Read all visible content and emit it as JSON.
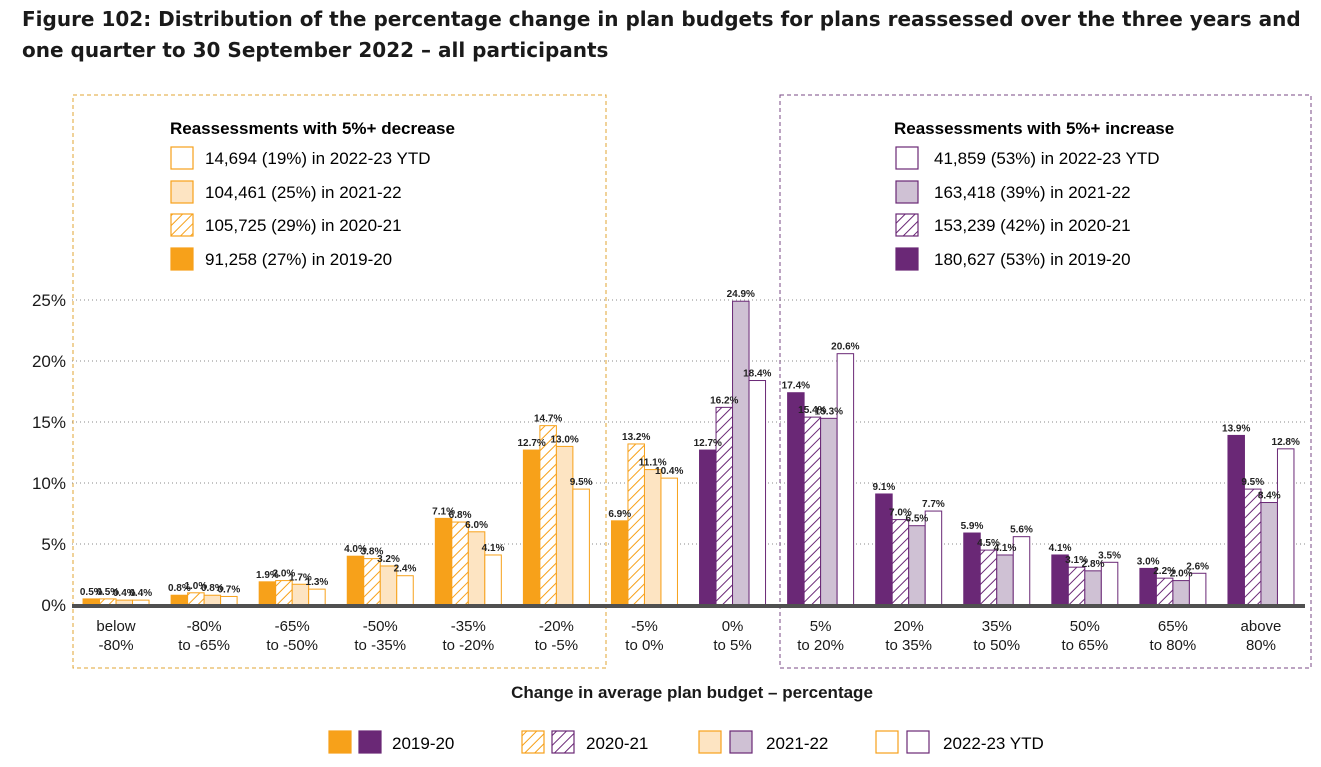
{
  "title": "Figure 102: Distribution of the percentage change in plan budgets for plans reassessed over the three years and one quarter to 30 September 2022 – all participants",
  "colors": {
    "orange": "#f7a11a",
    "purple": "#6a2876",
    "orange_light": "#fde4c2",
    "purple_light": "#cfc1d4",
    "axis": "#505050",
    "grid": "#8a8a8a",
    "decrease_box": "#e0a433",
    "increase_box": "#7a4a86"
  },
  "decrease_box": {
    "heading": "Reassessments with 5%+ decrease",
    "items": [
      "14,694 (19%) in 2022-23 YTD",
      "104,461 (25%) in 2021-22",
      "105,725 (29%) in 2020-21",
      "91,258 (27%) in 2019-20"
    ]
  },
  "increase_box": {
    "heading": "Reassessments with 5%+ increase",
    "items": [
      "41,859 (53%) in 2022-23 YTD",
      "163,418 (39%) in 2021-22",
      "153,239 (42%) in 2020-21",
      "180,627 (53%) in 2019-20"
    ]
  },
  "legend": [
    "2019-20",
    "2020-21",
    "2021-22",
    "2022-23 YTD"
  ],
  "chart_data": {
    "type": "bar",
    "xlabel": "Change in average plan budget – percentage",
    "ylabel": "",
    "ylim": [
      0,
      25
    ],
    "yticks": [
      "0%",
      "5%",
      "10%",
      "15%",
      "20%",
      "25%"
    ],
    "grid": true,
    "categories": [
      [
        "below",
        "-80%"
      ],
      [
        "-80%",
        "to -65%"
      ],
      [
        "-65%",
        "to -50%"
      ],
      [
        "-50%",
        "to -35%"
      ],
      [
        "-35%",
        "to -20%"
      ],
      [
        "-20%",
        "to -5%"
      ],
      [
        "-5%",
        "to 0%"
      ],
      [
        "0%",
        "to 5%"
      ],
      [
        "5%",
        "to 20%"
      ],
      [
        "20%",
        "to 35%"
      ],
      [
        "35%",
        "to 50%"
      ],
      [
        "50%",
        "to 65%"
      ],
      [
        "65%",
        "to 80%"
      ],
      [
        "above",
        "80%"
      ]
    ],
    "series": [
      {
        "name": "2019-20",
        "values": [
          0.5,
          0.8,
          1.9,
          4.0,
          7.1,
          12.7,
          6.9,
          12.7,
          17.4,
          9.1,
          5.9,
          4.1,
          3.0,
          13.9
        ]
      },
      {
        "name": "2020-21",
        "values": [
          0.5,
          1.0,
          2.0,
          3.8,
          6.8,
          14.7,
          13.2,
          16.2,
          15.4,
          7.0,
          4.5,
          3.1,
          2.2,
          9.5
        ]
      },
      {
        "name": "2021-22",
        "values": [
          0.4,
          0.8,
          1.7,
          3.2,
          6.0,
          13.0,
          11.1,
          24.9,
          15.3,
          6.5,
          4.1,
          2.8,
          2.0,
          8.4
        ]
      },
      {
        "name": "2022-23 YTD",
        "values": [
          0.4,
          0.7,
          1.3,
          2.4,
          4.1,
          9.5,
          10.4,
          18.4,
          20.6,
          7.7,
          5.6,
          3.5,
          2.6,
          12.8
        ]
      }
    ],
    "data_labels": [
      [
        "0.5%",
        "0.5%",
        "0.4%",
        "0.4%"
      ],
      [
        "0.8%",
        "1.0%",
        "0.8%",
        "0.7%"
      ],
      [
        "1.9%",
        "2.0%",
        "1.7%",
        "1.3%"
      ],
      [
        "4.0%",
        "3.8%",
        "3.2%",
        "2.4%"
      ],
      [
        "7.1%",
        "6.8%",
        "6.0%",
        "4.1%"
      ],
      [
        "12.7%",
        "14.7%",
        "13.0%",
        "9.5%"
      ],
      [
        "6.9%",
        "13.2%",
        "11.1%",
        "10.4%"
      ],
      [
        "12.7%",
        "16.2%",
        "24.9%",
        "18.4%"
      ],
      [
        "17.4%",
        "15.4%",
        "15.3%",
        "20.6%"
      ],
      [
        "9.1%",
        "7.0%",
        "6.5%",
        "7.7%"
      ],
      [
        "5.9%",
        "4.5%",
        "4.1%",
        "5.6%"
      ],
      [
        "4.1%",
        "3.1%",
        "2.8%",
        "3.5%"
      ],
      [
        "3.0%",
        "2.2%",
        "2.0%",
        "2.6%"
      ],
      [
        "13.9%",
        "9.5%",
        "8.4%",
        "12.8%"
      ]
    ]
  }
}
